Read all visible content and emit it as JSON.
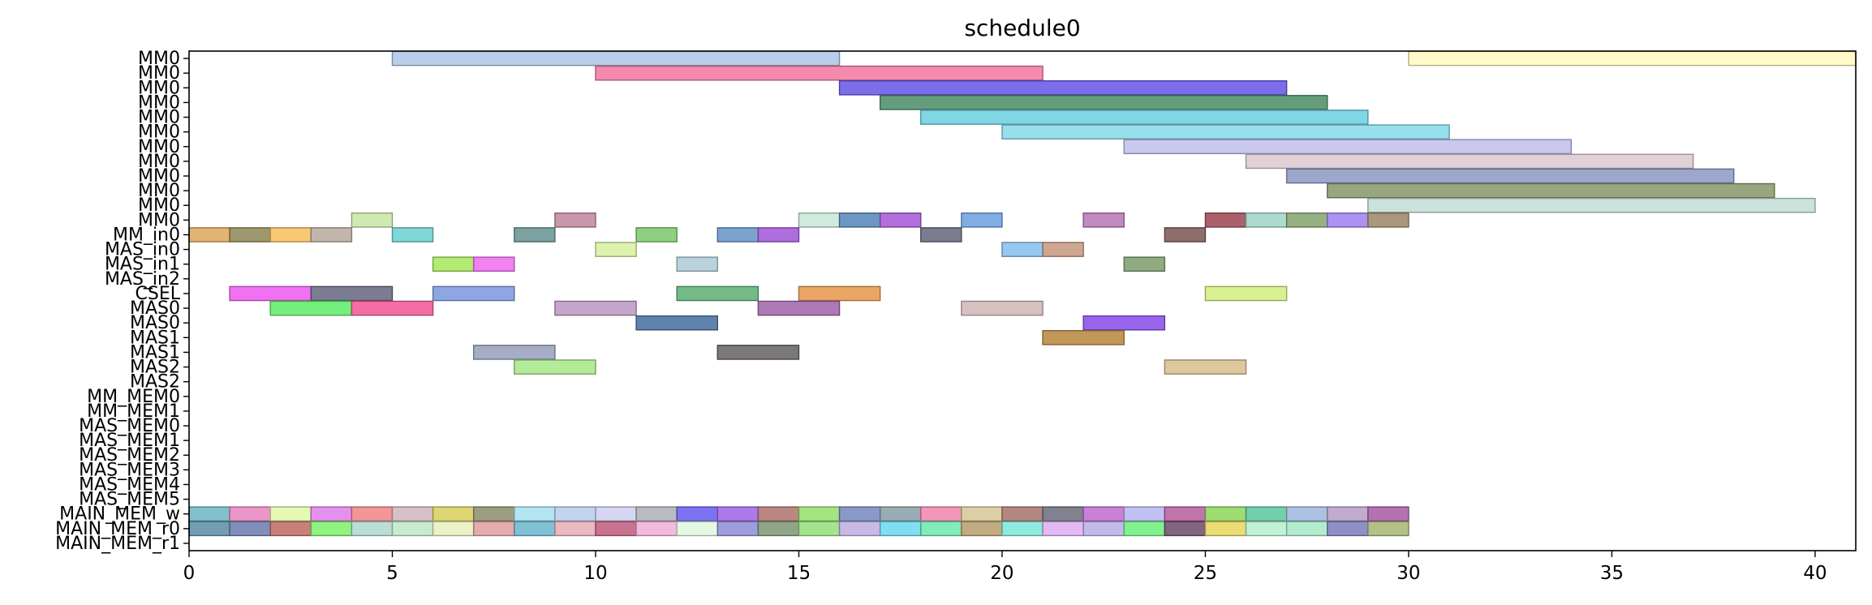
{
  "chart_data": {
    "type": "gantt",
    "title": "schedule0",
    "xlabel": "",
    "ylabel": "",
    "xlim": [
      0,
      41
    ],
    "x_ticks": [
      0,
      5,
      10,
      15,
      20,
      25,
      30,
      35,
      40
    ],
    "grid": false,
    "categories": [
      "MM0",
      "MM0",
      "MM0",
      "MM0",
      "MM0",
      "MM0",
      "MM0",
      "MM0",
      "MM0",
      "MM0",
      "MM0",
      "MM0",
      "MM_in0",
      "MAS_in0",
      "MAS_in1",
      "MAS_in2",
      "CSEL",
      "MAS0",
      "MAS0",
      "MAS1",
      "MAS1",
      "MAS2",
      "MAS2",
      "MM_MEM0",
      "MM_MEM1",
      "MAS_MEM0",
      "MAS_MEM1",
      "MAS_MEM2",
      "MAS_MEM3",
      "MAS_MEM4",
      "MAS_MEM5",
      "MAIN_MEM_w",
      "MAIN_MEM_r0",
      "MAIN_MEM_r1"
    ],
    "tasks": [
      {
        "row": 0,
        "start": 5,
        "end": 16,
        "color": "#aec7e8"
      },
      {
        "row": 0,
        "start": 30,
        "end": 41,
        "color": "#fff9bf"
      },
      {
        "row": 1,
        "start": 10,
        "end": 21,
        "color": "#f27ba4"
      },
      {
        "row": 2,
        "start": 16,
        "end": 27,
        "color": "#6a5ae8"
      },
      {
        "row": 3,
        "start": 17,
        "end": 28,
        "color": "#4f8f6a"
      },
      {
        "row": 4,
        "start": 18,
        "end": 29,
        "color": "#6ed0e0"
      },
      {
        "row": 5,
        "start": 20,
        "end": 31,
        "color": "#88dbe8"
      },
      {
        "row": 6,
        "start": 23,
        "end": 34,
        "color": "#c2c0ec"
      },
      {
        "row": 7,
        "start": 26,
        "end": 37,
        "color": "#ddcad2"
      },
      {
        "row": 8,
        "start": 27,
        "end": 38,
        "color": "#8f9ac4"
      },
      {
        "row": 9,
        "start": 28,
        "end": 39,
        "color": "#8a9a6e"
      },
      {
        "row": 10,
        "start": 29,
        "end": 40,
        "color": "#c4ddd6"
      },
      {
        "row": 11,
        "start": 4,
        "end": 5,
        "color": "#c9e6a8"
      },
      {
        "row": 11,
        "start": 9,
        "end": 10,
        "color": "#c28aa2"
      },
      {
        "row": 11,
        "start": 15,
        "end": 16,
        "color": "#c8e8d8"
      },
      {
        "row": 11,
        "start": 16,
        "end": 17,
        "color": "#5a88bc"
      },
      {
        "row": 11,
        "start": 17,
        "end": 18,
        "color": "#a85ad8"
      },
      {
        "row": 11,
        "start": 19,
        "end": 20,
        "color": "#6ea2e0"
      },
      {
        "row": 11,
        "start": 22,
        "end": 23,
        "color": "#b87ab8"
      },
      {
        "row": 11,
        "start": 25,
        "end": 26,
        "color": "#a04a58"
      },
      {
        "row": 11,
        "start": 26,
        "end": 27,
        "color": "#a2d6c8"
      },
      {
        "row": 11,
        "start": 27,
        "end": 28,
        "color": "#88a670"
      },
      {
        "row": 11,
        "start": 28,
        "end": 29,
        "color": "#a083f0"
      },
      {
        "row": 11,
        "start": 29,
        "end": 30,
        "color": "#9e8a6a"
      },
      {
        "row": 12,
        "start": 0,
        "end": 1,
        "color": "#dea860"
      },
      {
        "row": 12,
        "start": 1,
        "end": 2,
        "color": "#8f8a5a"
      },
      {
        "row": 12,
        "start": 2,
        "end": 3,
        "color": "#f8c060"
      },
      {
        "row": 12,
        "start": 3,
        "end": 4,
        "color": "#b8aca0"
      },
      {
        "row": 12,
        "start": 5,
        "end": 6,
        "color": "#6ed2d2"
      },
      {
        "row": 12,
        "start": 8,
        "end": 9,
        "color": "#6a9494"
      },
      {
        "row": 12,
        "start": 11,
        "end": 12,
        "color": "#80c870"
      },
      {
        "row": 12,
        "start": 13,
        "end": 14,
        "color": "#6a96c8"
      },
      {
        "row": 12,
        "start": 14,
        "end": 15,
        "color": "#a45ad8"
      },
      {
        "row": 12,
        "start": 18,
        "end": 19,
        "color": "#6a6a80"
      },
      {
        "row": 12,
        "start": 24,
        "end": 25,
        "color": "#805a5a"
      },
      {
        "row": 13,
        "start": 10,
        "end": 11,
        "color": "#d8f0a0"
      },
      {
        "row": 13,
        "start": 20,
        "end": 21,
        "color": "#88c0f0"
      },
      {
        "row": 13,
        "start": 21,
        "end": 22,
        "color": "#c89a80"
      },
      {
        "row": 14,
        "start": 6,
        "end": 7,
        "color": "#a8e860"
      },
      {
        "row": 14,
        "start": 7,
        "end": 8,
        "color": "#f070f0"
      },
      {
        "row": 14,
        "start": 12,
        "end": 13,
        "color": "#b0ccd8"
      },
      {
        "row": 14,
        "start": 23,
        "end": 24,
        "color": "#80a070"
      },
      {
        "row": 16,
        "start": 1,
        "end": 3,
        "color": "#ee5ff0"
      },
      {
        "row": 16,
        "start": 3,
        "end": 5,
        "color": "#6a6a84"
      },
      {
        "row": 16,
        "start": 6,
        "end": 8,
        "color": "#7e9ade"
      },
      {
        "row": 16,
        "start": 12,
        "end": 14,
        "color": "#60b078"
      },
      {
        "row": 16,
        "start": 15,
        "end": 17,
        "color": "#e89a50"
      },
      {
        "row": 16,
        "start": 25,
        "end": 27,
        "color": "#d4ef80"
      },
      {
        "row": 17,
        "start": 2,
        "end": 4,
        "color": "#60ee6a"
      },
      {
        "row": 17,
        "start": 4,
        "end": 6,
        "color": "#f25a98"
      },
      {
        "row": 17,
        "start": 9,
        "end": 11,
        "color": "#bc98c4"
      },
      {
        "row": 17,
        "start": 14,
        "end": 16,
        "color": "#a266ac"
      },
      {
        "row": 17,
        "start": 19,
        "end": 21,
        "color": "#d0b8b8"
      },
      {
        "row": 18,
        "start": 11,
        "end": 13,
        "color": "#4a72a2"
      },
      {
        "row": 18,
        "start": 22,
        "end": 24,
        "color": "#8a50e8"
      },
      {
        "row": 19,
        "start": 21,
        "end": 23,
        "color": "#b88a40"
      },
      {
        "row": 20,
        "start": 7,
        "end": 9,
        "color": "#9aa2be"
      },
      {
        "row": 20,
        "start": 13,
        "end": 15,
        "color": "#6a6466"
      },
      {
        "row": 21,
        "start": 8,
        "end": 10,
        "color": "#a8e88a"
      },
      {
        "row": 21,
        "start": 24,
        "end": 26,
        "color": "#d8c090"
      },
      {
        "row": 31,
        "start": 0,
        "end": 1,
        "color": "#70b8c4"
      },
      {
        "row": 31,
        "start": 1,
        "end": 2,
        "color": "#e888c0"
      },
      {
        "row": 31,
        "start": 2,
        "end": 3,
        "color": "#e0f8a8"
      },
      {
        "row": 31,
        "start": 3,
        "end": 4,
        "color": "#e082ec"
      },
      {
        "row": 31,
        "start": 4,
        "end": 5,
        "color": "#f08888"
      },
      {
        "row": 31,
        "start": 5,
        "end": 6,
        "color": "#d0b8c0"
      },
      {
        "row": 31,
        "start": 6,
        "end": 7,
        "color": "#d8d060"
      },
      {
        "row": 31,
        "start": 7,
        "end": 8,
        "color": "#909070"
      },
      {
        "row": 31,
        "start": 8,
        "end": 9,
        "color": "#a8e0f0"
      },
      {
        "row": 31,
        "start": 9,
        "end": 10,
        "color": "#b8d0ec"
      },
      {
        "row": 31,
        "start": 10,
        "end": 11,
        "color": "#d0d0f0"
      },
      {
        "row": 31,
        "start": 11,
        "end": 12,
        "color": "#b0b0b8"
      },
      {
        "row": 31,
        "start": 12,
        "end": 13,
        "color": "#6a60f0"
      },
      {
        "row": 31,
        "start": 13,
        "end": 14,
        "color": "#a068e8"
      },
      {
        "row": 31,
        "start": 14,
        "end": 15,
        "color": "#b07870"
      },
      {
        "row": 31,
        "start": 15,
        "end": 16,
        "color": "#98e070"
      },
      {
        "row": 31,
        "start": 16,
        "end": 17,
        "color": "#7a8cc0"
      },
      {
        "row": 31,
        "start": 17,
        "end": 18,
        "color": "#8ca0a8"
      },
      {
        "row": 31,
        "start": 18,
        "end": 19,
        "color": "#f088b0"
      },
      {
        "row": 31,
        "start": 19,
        "end": 20,
        "color": "#d8c898"
      },
      {
        "row": 31,
        "start": 20,
        "end": 21,
        "color": "#a87870"
      },
      {
        "row": 31,
        "start": 21,
        "end": 22,
        "color": "#707080"
      },
      {
        "row": 31,
        "start": 22,
        "end": 23,
        "color": "#c070d0"
      },
      {
        "row": 31,
        "start": 23,
        "end": 24,
        "color": "#b8b8f0"
      },
      {
        "row": 31,
        "start": 24,
        "end": 25,
        "color": "#b860a0"
      },
      {
        "row": 31,
        "start": 25,
        "end": 26,
        "color": "#90d860"
      },
      {
        "row": 31,
        "start": 26,
        "end": 27,
        "color": "#60c8a0"
      },
      {
        "row": 31,
        "start": 27,
        "end": 28,
        "color": "#a0b8e0"
      },
      {
        "row": 31,
        "start": 28,
        "end": 29,
        "color": "#b8a0c8"
      },
      {
        "row": 31,
        "start": 29,
        "end": 30,
        "color": "#a860a8"
      },
      {
        "row": 32,
        "start": 0,
        "end": 1,
        "color": "#6090a8"
      },
      {
        "row": 32,
        "start": 1,
        "end": 2,
        "color": "#7080b0"
      },
      {
        "row": 32,
        "start": 2,
        "end": 3,
        "color": "#c07068"
      },
      {
        "row": 32,
        "start": 3,
        "end": 4,
        "color": "#80f070"
      },
      {
        "row": 32,
        "start": 4,
        "end": 5,
        "color": "#b0d8d0"
      },
      {
        "row": 32,
        "start": 5,
        "end": 6,
        "color": "#c0e8c8"
      },
      {
        "row": 32,
        "start": 6,
        "end": 7,
        "color": "#e8f0c0"
      },
      {
        "row": 32,
        "start": 7,
        "end": 8,
        "color": "#e0a0a0"
      },
      {
        "row": 32,
        "start": 8,
        "end": 9,
        "color": "#70b8d0"
      },
      {
        "row": 32,
        "start": 9,
        "end": 10,
        "color": "#e8b0b8"
      },
      {
        "row": 32,
        "start": 10,
        "end": 11,
        "color": "#c06080"
      },
      {
        "row": 32,
        "start": 11,
        "end": 12,
        "color": "#f0b0d8"
      },
      {
        "row": 32,
        "start": 12,
        "end": 13,
        "color": "#e0f8e0"
      },
      {
        "row": 32,
        "start": 13,
        "end": 14,
        "color": "#9090d8"
      },
      {
        "row": 32,
        "start": 14,
        "end": 15,
        "color": "#809878"
      },
      {
        "row": 32,
        "start": 15,
        "end": 16,
        "color": "#98e080"
      },
      {
        "row": 32,
        "start": 16,
        "end": 17,
        "color": "#c0b0e0"
      },
      {
        "row": 32,
        "start": 17,
        "end": 18,
        "color": "#70d8f0"
      },
      {
        "row": 32,
        "start": 18,
        "end": 19,
        "color": "#70e8b0"
      },
      {
        "row": 32,
        "start": 19,
        "end": 20,
        "color": "#b8a070"
      },
      {
        "row": 32,
        "start": 20,
        "end": 21,
        "color": "#80e8d8"
      },
      {
        "row": 32,
        "start": 21,
        "end": 22,
        "color": "#e0b0f0"
      },
      {
        "row": 32,
        "start": 22,
        "end": 23,
        "color": "#b8b0e8"
      },
      {
        "row": 32,
        "start": 23,
        "end": 24,
        "color": "#70f080"
      },
      {
        "row": 32,
        "start": 24,
        "end": 25,
        "color": "#705070"
      },
      {
        "row": 32,
        "start": 25,
        "end": 26,
        "color": "#e8d860"
      },
      {
        "row": 32,
        "start": 26,
        "end": 27,
        "color": "#b8f0d0"
      },
      {
        "row": 32,
        "start": 27,
        "end": 28,
        "color": "#a8e8c8"
      },
      {
        "row": 32,
        "start": 28,
        "end": 29,
        "color": "#8080c0"
      },
      {
        "row": 32,
        "start": 29,
        "end": 30,
        "color": "#a8b878"
      }
    ]
  }
}
